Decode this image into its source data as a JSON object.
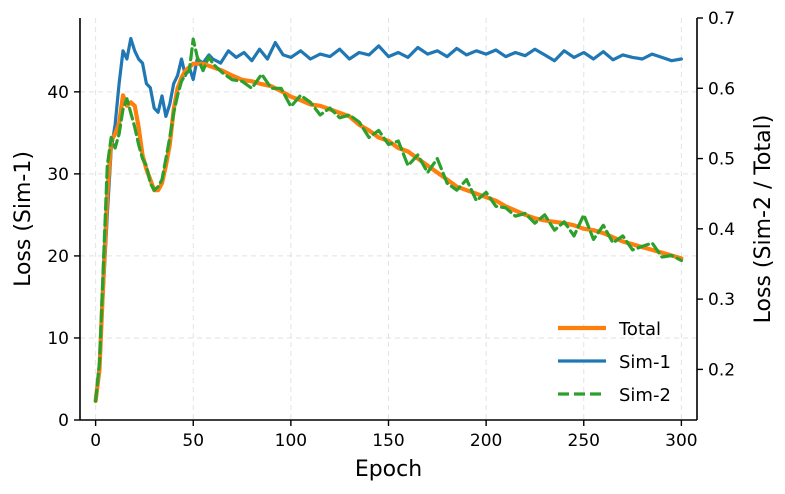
{
  "chart_data": {
    "type": "line",
    "title": "",
    "xlabel": "Epoch",
    "ylabel_left": "Loss (Sim-1)",
    "ylabel_right": "Loss (Sim-2 / Total)",
    "xlim": [
      -8,
      308
    ],
    "ylim_left": [
      0,
      49
    ],
    "ylim_right": [
      0.128,
      0.7
    ],
    "x_ticks": [
      0,
      50,
      100,
      150,
      200,
      250,
      300
    ],
    "y_ticks_left": [
      0,
      10,
      20,
      30,
      40
    ],
    "y_ticks_right": [
      0.2,
      0.3,
      0.4,
      0.5,
      0.6,
      0.7
    ],
    "grid": true,
    "legend_position": "lower-right",
    "series": [
      {
        "name": "Total",
        "axis": "right",
        "color": "#ff7f0e",
        "dash": "solid",
        "points": [
          [
            0,
            0.155
          ],
          [
            2,
            0.2
          ],
          [
            4,
            0.33
          ],
          [
            6,
            0.45
          ],
          [
            8,
            0.525
          ],
          [
            10,
            0.535
          ],
          [
            12,
            0.55
          ],
          [
            14,
            0.59
          ],
          [
            16,
            0.575
          ],
          [
            18,
            0.58
          ],
          [
            20,
            0.575
          ],
          [
            22,
            0.545
          ],
          [
            24,
            0.505
          ],
          [
            26,
            0.485
          ],
          [
            28,
            0.47
          ],
          [
            30,
            0.455
          ],
          [
            32,
            0.455
          ],
          [
            34,
            0.465
          ],
          [
            36,
            0.49
          ],
          [
            38,
            0.52
          ],
          [
            40,
            0.57
          ],
          [
            42,
            0.6
          ],
          [
            44,
            0.615
          ],
          [
            46,
            0.625
          ],
          [
            48,
            0.63
          ],
          [
            50,
            0.635
          ],
          [
            55,
            0.635
          ],
          [
            60,
            0.63
          ],
          [
            65,
            0.625
          ],
          [
            70,
            0.618
          ],
          [
            75,
            0.612
          ],
          [
            80,
            0.61
          ],
          [
            85,
            0.606
          ],
          [
            90,
            0.603
          ],
          [
            95,
            0.596
          ],
          [
            100,
            0.588
          ],
          [
            105,
            0.583
          ],
          [
            110,
            0.577
          ],
          [
            115,
            0.575
          ],
          [
            120,
            0.57
          ],
          [
            125,
            0.565
          ],
          [
            130,
            0.56
          ],
          [
            135,
            0.548
          ],
          [
            140,
            0.54
          ],
          [
            145,
            0.53
          ],
          [
            150,
            0.525
          ],
          [
            155,
            0.515
          ],
          [
            160,
            0.51
          ],
          [
            165,
            0.5
          ],
          [
            170,
            0.49
          ],
          [
            175,
            0.48
          ],
          [
            180,
            0.47
          ],
          [
            185,
            0.46
          ],
          [
            190,
            0.455
          ],
          [
            195,
            0.45
          ],
          [
            200,
            0.445
          ],
          [
            205,
            0.44
          ],
          [
            210,
            0.432
          ],
          [
            215,
            0.426
          ],
          [
            220,
            0.42
          ],
          [
            225,
            0.415
          ],
          [
            230,
            0.412
          ],
          [
            235,
            0.41
          ],
          [
            240,
            0.408
          ],
          [
            245,
            0.405
          ],
          [
            250,
            0.4
          ],
          [
            255,
            0.398
          ],
          [
            260,
            0.394
          ],
          [
            265,
            0.388
          ],
          [
            270,
            0.382
          ],
          [
            275,
            0.378
          ],
          [
            280,
            0.374
          ],
          [
            285,
            0.37
          ],
          [
            290,
            0.366
          ],
          [
            295,
            0.362
          ],
          [
            300,
            0.358
          ]
        ]
      },
      {
        "name": "Sim-1",
        "axis": "left",
        "color": "#1f77b4",
        "dash": "solid",
        "points": [
          [
            0,
            2.3
          ],
          [
            2,
            7
          ],
          [
            4,
            16
          ],
          [
            6,
            25
          ],
          [
            8,
            33
          ],
          [
            10,
            36
          ],
          [
            12,
            41
          ],
          [
            14,
            45
          ],
          [
            16,
            44
          ],
          [
            18,
            46.5
          ],
          [
            20,
            45
          ],
          [
            22,
            44
          ],
          [
            24,
            43.5
          ],
          [
            26,
            41
          ],
          [
            28,
            40.5
          ],
          [
            30,
            38
          ],
          [
            32,
            37.5
          ],
          [
            34,
            39.5
          ],
          [
            36,
            37
          ],
          [
            38,
            38.5
          ],
          [
            40,
            41
          ],
          [
            42,
            42
          ],
          [
            44,
            44
          ],
          [
            46,
            42
          ],
          [
            48,
            43
          ],
          [
            50,
            41.5
          ],
          [
            52,
            44
          ],
          [
            55,
            43.5
          ],
          [
            58,
            44.5
          ],
          [
            60,
            44
          ],
          [
            64,
            43.5
          ],
          [
            68,
            45
          ],
          [
            72,
            44.2
          ],
          [
            76,
            44.8
          ],
          [
            80,
            43.8
          ],
          [
            84,
            45.2
          ],
          [
            88,
            44
          ],
          [
            92,
            46
          ],
          [
            96,
            44.5
          ],
          [
            100,
            44.2
          ],
          [
            105,
            45
          ],
          [
            110,
            44
          ],
          [
            115,
            44.6
          ],
          [
            120,
            44.3
          ],
          [
            125,
            45.2
          ],
          [
            130,
            44
          ],
          [
            135,
            44.8
          ],
          [
            140,
            44.5
          ],
          [
            145,
            45.6
          ],
          [
            150,
            44.3
          ],
          [
            155,
            44.8
          ],
          [
            160,
            44.2
          ],
          [
            165,
            45.4
          ],
          [
            170,
            44.6
          ],
          [
            175,
            45
          ],
          [
            180,
            44.3
          ],
          [
            185,
            45.3
          ],
          [
            190,
            44.5
          ],
          [
            195,
            45
          ],
          [
            200,
            44.6
          ],
          [
            205,
            45.1
          ],
          [
            210,
            44.3
          ],
          [
            215,
            44.8
          ],
          [
            220,
            44.4
          ],
          [
            225,
            45.2
          ],
          [
            230,
            44.5
          ],
          [
            235,
            43.8
          ],
          [
            240,
            45
          ],
          [
            245,
            44.2
          ],
          [
            250,
            44.8
          ],
          [
            255,
            44
          ],
          [
            260,
            44.9
          ],
          [
            265,
            43.9
          ],
          [
            270,
            44.5
          ],
          [
            275,
            44.2
          ],
          [
            280,
            44
          ],
          [
            285,
            44.6
          ],
          [
            290,
            44.2
          ],
          [
            295,
            43.8
          ],
          [
            300,
            44
          ]
        ]
      },
      {
        "name": "Sim-2",
        "axis": "right",
        "color": "#2ca02c",
        "dash": "dashed",
        "points": [
          [
            0,
            0.155
          ],
          [
            2,
            0.21
          ],
          [
            4,
            0.35
          ],
          [
            6,
            0.49
          ],
          [
            8,
            0.53
          ],
          [
            10,
            0.515
          ],
          [
            12,
            0.535
          ],
          [
            14,
            0.57
          ],
          [
            16,
            0.585
          ],
          [
            18,
            0.565
          ],
          [
            20,
            0.545
          ],
          [
            22,
            0.52
          ],
          [
            24,
            0.5
          ],
          [
            26,
            0.49
          ],
          [
            28,
            0.465
          ],
          [
            30,
            0.455
          ],
          [
            32,
            0.46
          ],
          [
            34,
            0.47
          ],
          [
            36,
            0.5
          ],
          [
            38,
            0.53
          ],
          [
            40,
            0.565
          ],
          [
            42,
            0.59
          ],
          [
            44,
            0.61
          ],
          [
            46,
            0.62
          ],
          [
            48,
            0.625
          ],
          [
            50,
            0.67
          ],
          [
            52,
            0.645
          ],
          [
            55,
            0.625
          ],
          [
            58,
            0.645
          ],
          [
            60,
            0.635
          ],
          [
            65,
            0.622
          ],
          [
            70,
            0.612
          ],
          [
            75,
            0.61
          ],
          [
            80,
            0.6
          ],
          [
            85,
            0.62
          ],
          [
            90,
            0.6
          ],
          [
            95,
            0.6
          ],
          [
            100,
            0.574
          ],
          [
            105,
            0.59
          ],
          [
            110,
            0.58
          ],
          [
            115,
            0.562
          ],
          [
            120,
            0.572
          ],
          [
            125,
            0.558
          ],
          [
            130,
            0.562
          ],
          [
            135,
            0.552
          ],
          [
            140,
            0.53
          ],
          [
            145,
            0.54
          ],
          [
            150,
            0.52
          ],
          [
            155,
            0.525
          ],
          [
            160,
            0.49
          ],
          [
            165,
            0.505
          ],
          [
            170,
            0.48
          ],
          [
            175,
            0.5
          ],
          [
            180,
            0.465
          ],
          [
            185,
            0.455
          ],
          [
            190,
            0.47
          ],
          [
            195,
            0.44
          ],
          [
            200,
            0.452
          ],
          [
            205,
            0.432
          ],
          [
            210,
            0.43
          ],
          [
            215,
            0.418
          ],
          [
            220,
            0.422
          ],
          [
            225,
            0.408
          ],
          [
            230,
            0.42
          ],
          [
            235,
            0.398
          ],
          [
            240,
            0.41
          ],
          [
            245,
            0.39
          ],
          [
            250,
            0.42
          ],
          [
            255,
            0.385
          ],
          [
            260,
            0.405
          ],
          [
            265,
            0.38
          ],
          [
            270,
            0.39
          ],
          [
            275,
            0.37
          ],
          [
            280,
            0.375
          ],
          [
            285,
            0.38
          ],
          [
            290,
            0.36
          ],
          [
            295,
            0.362
          ],
          [
            300,
            0.355
          ]
        ]
      }
    ]
  }
}
